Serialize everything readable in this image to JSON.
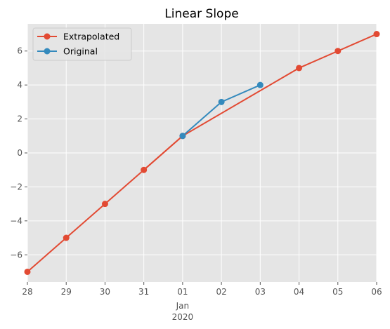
{
  "chart_data": {
    "type": "line",
    "title": "Linear Slope",
    "xlabel": "",
    "ylabel": "",
    "x_axis": {
      "type": "date",
      "range": [
        "2019-12-28",
        "2020-01-06"
      ],
      "ticks": [
        {
          "date": "2019-12-28",
          "label": "28"
        },
        {
          "date": "2019-12-29",
          "label": "29"
        },
        {
          "date": "2019-12-30",
          "label": "30"
        },
        {
          "date": "2019-12-31",
          "label": "31"
        },
        {
          "date": "2020-01-01",
          "label": "01",
          "sublabel": "Jan",
          "sublabel2": "2020"
        },
        {
          "date": "2020-01-02",
          "label": "02"
        },
        {
          "date": "2020-01-03",
          "label": "03"
        },
        {
          "date": "2020-01-04",
          "label": "04"
        },
        {
          "date": "2020-01-05",
          "label": "05"
        },
        {
          "date": "2020-01-06",
          "label": "06"
        }
      ]
    },
    "y_axis": {
      "range": [
        -7.6,
        7.6
      ],
      "ticks": [
        {
          "value": -6,
          "label": "−6"
        },
        {
          "value": -4,
          "label": "−4"
        },
        {
          "value": -2,
          "label": "−2"
        },
        {
          "value": 0,
          "label": "0"
        },
        {
          "value": 2,
          "label": "2"
        },
        {
          "value": 4,
          "label": "4"
        },
        {
          "value": 6,
          "label": "6"
        }
      ]
    },
    "grid": true,
    "legend": "top-left",
    "series": [
      {
        "name": "Extrapolated",
        "color": "#E24A33",
        "marker": "circle",
        "points": [
          {
            "x": "2019-12-28",
            "y": -7
          },
          {
            "x": "2019-12-29",
            "y": -5
          },
          {
            "x": "2019-12-30",
            "y": -3
          },
          {
            "x": "2019-12-31",
            "y": -1
          },
          {
            "x": "2020-01-01",
            "y": 1
          },
          {
            "x": "2020-01-04",
            "y": 5
          },
          {
            "x": "2020-01-05",
            "y": 6
          },
          {
            "x": "2020-01-06",
            "y": 7
          }
        ],
        "segments": [
          [
            0,
            4
          ],
          [
            3,
            7
          ]
        ]
      },
      {
        "name": "Original",
        "color": "#348ABD",
        "marker": "circle",
        "points": [
          {
            "x": "2020-01-01",
            "y": 1
          },
          {
            "x": "2020-01-02",
            "y": 3
          },
          {
            "x": "2020-01-03",
            "y": 4
          }
        ]
      }
    ],
    "colors": {
      "plot_background": "#E5E5E5",
      "grid": "#FFFFFF"
    }
  }
}
